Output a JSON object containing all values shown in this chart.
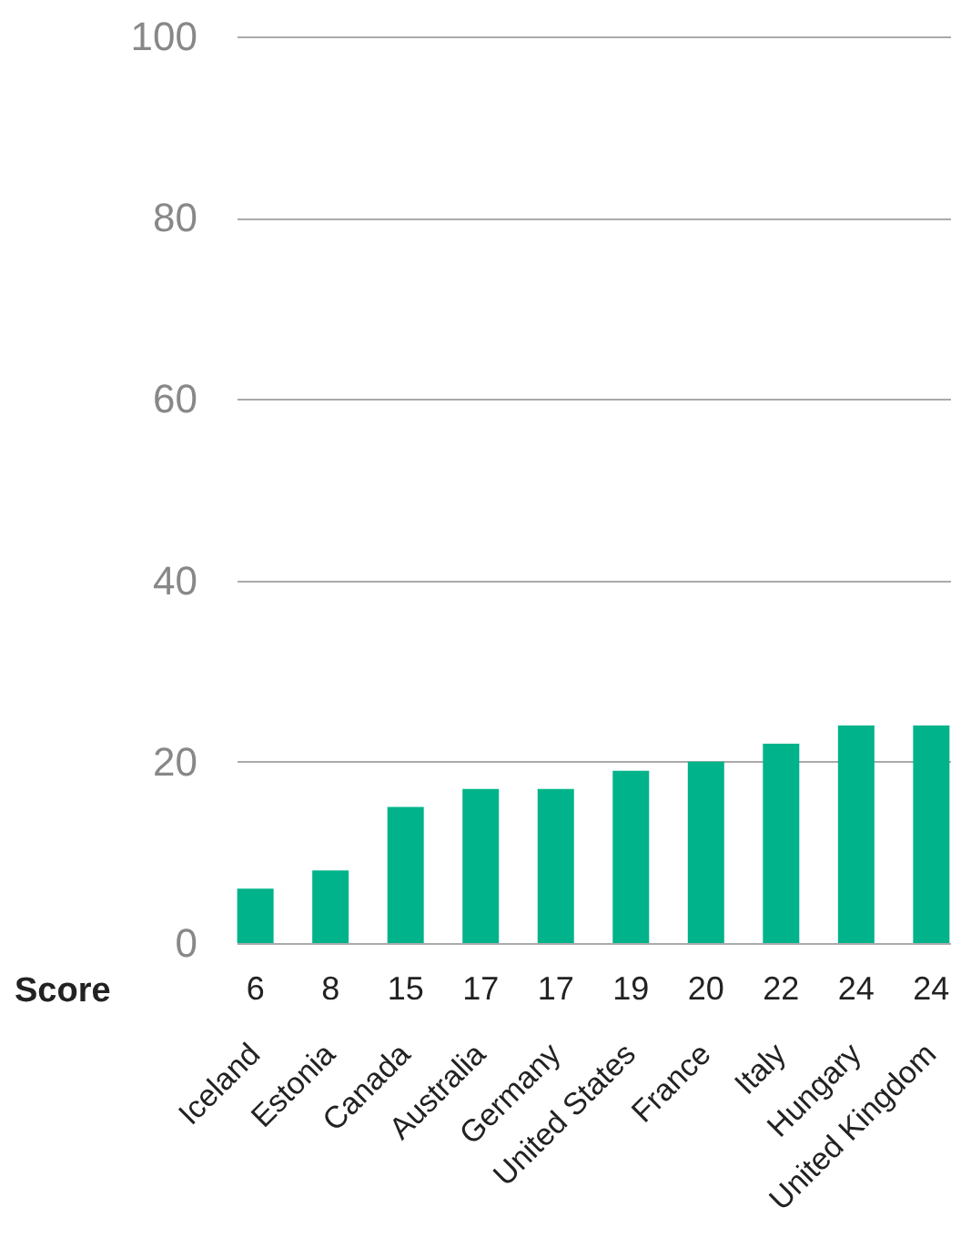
{
  "chart_data": {
    "type": "bar",
    "categories": [
      "Iceland",
      "Estonia",
      "Canada",
      "Australia",
      "Germany",
      "United States",
      "France",
      "Italy",
      "Hungary",
      "United Kingdom"
    ],
    "values": [
      6,
      8,
      15,
      17,
      17,
      19,
      20,
      22,
      24,
      24
    ],
    "color": "#00b38a",
    "ylim": [
      0,
      100
    ],
    "yticks": [
      0,
      20,
      40,
      60,
      80,
      100
    ],
    "grid": "y",
    "data_labels": true,
    "annotations": [
      "Score"
    ]
  }
}
